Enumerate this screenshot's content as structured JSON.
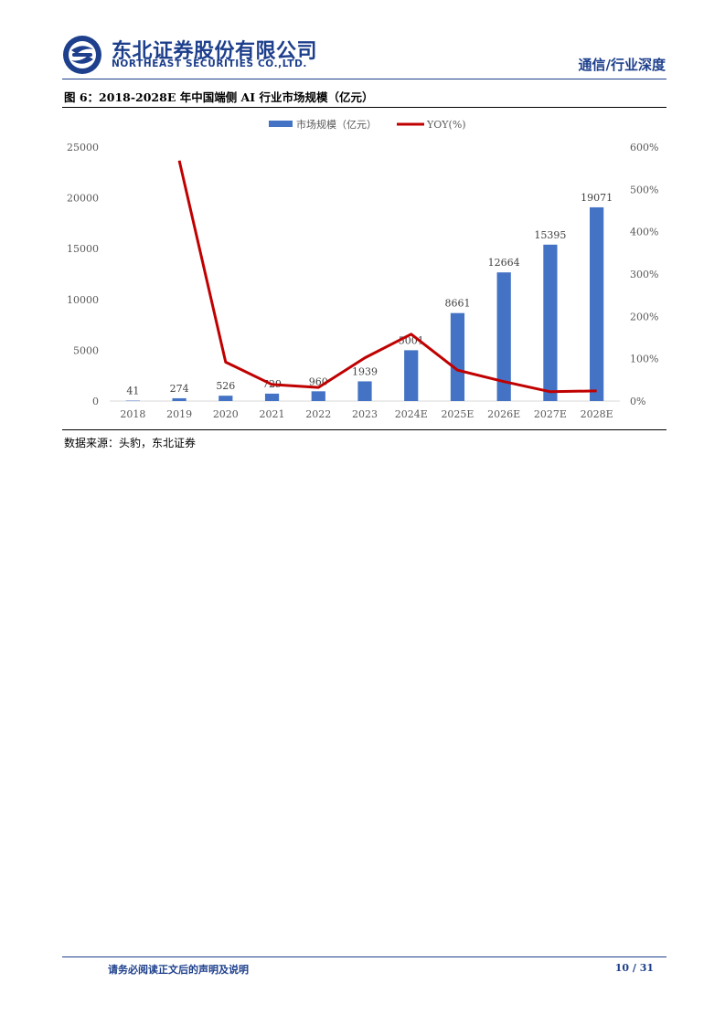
{
  "header": {
    "brand_cn": "东北证券股份有限公司",
    "brand_en": "NORTHEAST SECURITIES CO.,LTD.",
    "section": "通信/行业深度",
    "logo_icon": "northeast-securities-logo",
    "brand_color": "#1d3f8c"
  },
  "figure": {
    "title": "图 6：2018-2028E 年中国端侧 AI 行业市场规模（亿元）",
    "source": "数据来源：头豹，东北证券"
  },
  "chart_data": {
    "type": "bar",
    "categories": [
      "2018",
      "2019",
      "2020",
      "2021",
      "2022",
      "2023",
      "2024E",
      "2025E",
      "2026E",
      "2027E",
      "2028E"
    ],
    "series": [
      {
        "name": "市场规模（亿元）",
        "type": "bar",
        "axis": "left",
        "color": "#4472c4",
        "values": [
          41,
          274,
          526,
          729,
          960,
          1939,
          5001,
          8661,
          12664,
          15395,
          19071
        ],
        "labels": [
          "41",
          "274",
          "526",
          "729",
          "960",
          "1939",
          "5001",
          "8661",
          "12664",
          "15395",
          "19071"
        ]
      },
      {
        "name": "YOY(%)",
        "type": "line",
        "axis": "right",
        "color": "#c00000",
        "values": [
          null,
          568,
          92,
          39,
          32,
          102,
          158,
          73,
          46,
          22,
          24
        ]
      }
    ],
    "ylim_left": [
      0,
      25000
    ],
    "yticks_left": [
      "0",
      "5000",
      "10000",
      "15000",
      "20000",
      "25000"
    ],
    "ylim_right": [
      0,
      600
    ],
    "yticks_right": [
      "0%",
      "100%",
      "200%",
      "300%",
      "400%",
      "500%",
      "600%"
    ],
    "legend": "top-center",
    "grid": false
  },
  "footer": {
    "disclaimer": "请务必阅读正文后的声明及说明",
    "page": "10 / 31"
  }
}
